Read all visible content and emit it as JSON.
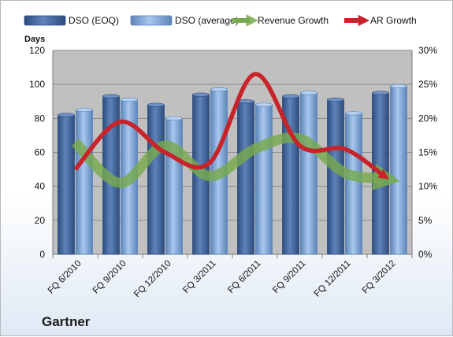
{
  "company": "Gartner",
  "legend": {
    "dso_eoq": "DSO (EOQ)",
    "dso_avg": "DSO (average)",
    "revenue_growth": "Revenue Growth",
    "ar_growth": "AR Growth"
  },
  "colors": {
    "dso_eoq": "#4a6fa5",
    "dso_avg": "#8eb4e3",
    "revenue_growth": "#77a94e",
    "ar_growth": "#c8222a",
    "plot_bg": "#c0c0c0"
  },
  "chart_data": {
    "type": "bar",
    "title": "",
    "xlabel": "",
    "ylabel": "Days",
    "ylim": [
      0,
      120
    ],
    "yticks": [
      "0",
      "20",
      "40",
      "60",
      "80",
      "100",
      "120"
    ],
    "y2lim": [
      0,
      30
    ],
    "y2ticks": [
      "0%",
      "5%",
      "10%",
      "15%",
      "20%",
      "25%",
      "30%"
    ],
    "categories": [
      "FQ 6/2010",
      "FQ 9/2010",
      "FQ 12/2010",
      "FQ 3/2011",
      "FQ 6/2011",
      "FQ 9/2011",
      "FQ 12/2011",
      "FQ 3/2012"
    ],
    "series": [
      {
        "name": "DSO (EOQ)",
        "type": "bar",
        "axis": "left",
        "values": [
          82,
          93,
          88,
          94,
          90,
          93,
          91,
          95
        ]
      },
      {
        "name": "DSO (average)",
        "type": "bar",
        "axis": "left",
        "values": [
          85,
          91,
          80,
          97,
          88,
          95,
          83,
          99
        ]
      },
      {
        "name": "Revenue Growth",
        "type": "line",
        "axis": "right",
        "unit": "%",
        "values": [
          16.5,
          10.5,
          16.0,
          11.5,
          15.5,
          17.0,
          12.0,
          11.0
        ]
      },
      {
        "name": "AR Growth",
        "type": "line",
        "axis": "right",
        "unit": "%",
        "values": [
          12.5,
          19.5,
          15.0,
          13.5,
          26.5,
          16.0,
          15.5,
          11.0
        ]
      }
    ],
    "grid": true,
    "legend_position": "top"
  }
}
